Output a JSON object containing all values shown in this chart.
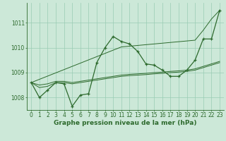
{
  "xlabel": "Graphe pression niveau de la mer (hPa)",
  "x": [
    0,
    1,
    2,
    3,
    4,
    5,
    6,
    7,
    8,
    9,
    10,
    11,
    12,
    13,
    14,
    15,
    16,
    17,
    18,
    19,
    20,
    21,
    22,
    23
  ],
  "line_main": [
    1008.6,
    1008.0,
    1008.3,
    1008.6,
    1008.55,
    1007.65,
    1008.1,
    1008.15,
    1009.4,
    1010.0,
    1010.45,
    1010.25,
    1010.15,
    1009.85,
    1009.35,
    1009.3,
    1009.1,
    1008.85,
    1008.85,
    1009.1,
    1009.5,
    1010.35,
    1010.35,
    1011.5
  ],
  "line_straight": [
    1008.6,
    1008.73,
    1008.86,
    1008.99,
    1009.12,
    1009.25,
    1009.38,
    1009.51,
    1009.64,
    1009.77,
    1009.9,
    1010.03,
    1010.06,
    1010.09,
    1010.12,
    1010.15,
    1010.18,
    1010.21,
    1010.24,
    1010.27,
    1010.3,
    1010.7,
    1011.15,
    1011.5
  ],
  "line_flat1": [
    1008.6,
    1008.4,
    1008.45,
    1008.6,
    1008.6,
    1008.55,
    1008.6,
    1008.65,
    1008.7,
    1008.75,
    1008.8,
    1008.85,
    1008.88,
    1008.9,
    1008.92,
    1008.95,
    1008.97,
    1009.0,
    1009.02,
    1009.05,
    1009.1,
    1009.2,
    1009.3,
    1009.4
  ],
  "line_flat2": [
    1008.6,
    1008.5,
    1008.55,
    1008.65,
    1008.65,
    1008.6,
    1008.65,
    1008.7,
    1008.75,
    1008.8,
    1008.85,
    1008.9,
    1008.93,
    1008.95,
    1008.97,
    1009.0,
    1009.02,
    1009.05,
    1009.07,
    1009.1,
    1009.15,
    1009.25,
    1009.35,
    1009.45
  ],
  "line_color": "#2d6a2d",
  "bg_color": "#cce8d8",
  "grid_color": "#99ccb3",
  "ylim_min": 1007.5,
  "ylim_max": 1011.8,
  "ytick_min": 1008,
  "ytick_max": 1011,
  "xlabel_fontsize": 6.5,
  "tick_fontsize": 5.5
}
